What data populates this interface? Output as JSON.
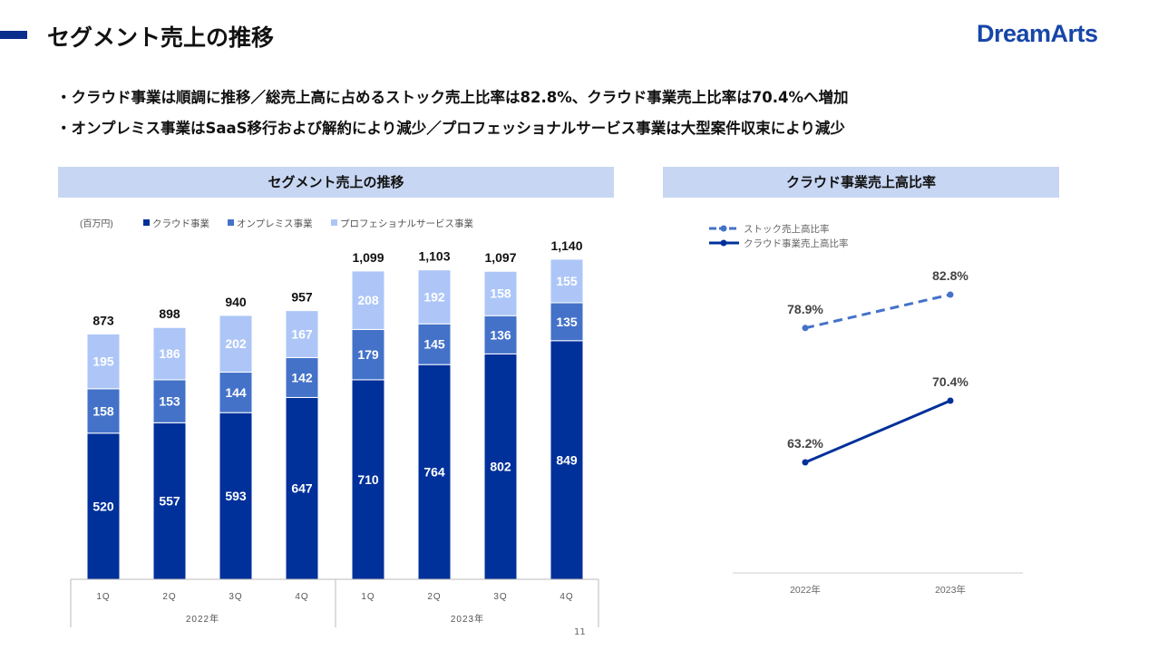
{
  "header": {
    "title": "セグメント売上の推移",
    "logo": "DreamArts"
  },
  "bullets": [
    "・クラウド事業は順調に推移／総売上高に占めるストック売上比率は82.8%、クラウド事業売上比率は70.4%へ増加",
    "・オンプレミス事業はSaaS移行および解約により減少／プロフェッショナルサービス事業は大型案件収束により減少"
  ],
  "page_number": "11",
  "colors": {
    "cloud": "#00309a",
    "onprem": "#4472c9",
    "pro": "#adc6f7",
    "stock_line": "#4472c9",
    "cloud_line": "#00309a"
  },
  "chart_data": [
    {
      "type": "bar",
      "stacked": true,
      "title": "セグメント売上の推移",
      "unit": "(百万円)",
      "categories": [
        "1Q",
        "2Q",
        "3Q",
        "4Q",
        "1Q",
        "2Q",
        "3Q",
        "4Q"
      ],
      "groups": [
        {
          "label": "2022年",
          "count": 4
        },
        {
          "label": "2023年",
          "count": 4
        }
      ],
      "series": [
        {
          "name": "クラウド事業",
          "values": [
            520,
            557,
            593,
            647,
            710,
            764,
            802,
            849
          ]
        },
        {
          "name": "オンプレミス事業",
          "values": [
            158,
            153,
            144,
            142,
            179,
            145,
            136,
            135
          ]
        },
        {
          "name": "プロフェショナルサービス事業",
          "values": [
            195,
            186,
            202,
            167,
            208,
            192,
            158,
            155
          ]
        }
      ],
      "totals": [
        "873",
        "898",
        "940",
        "957",
        "1,099",
        "1,103",
        "1,097",
        "1,140"
      ],
      "legend": "top-left"
    },
    {
      "type": "line",
      "title": "クラウド事業売上高比率",
      "categories": [
        "2022年",
        "2023年"
      ],
      "series": [
        {
          "name": "ストック売上高比率",
          "values": [
            78.9,
            82.8
          ],
          "labels": [
            "78.9%",
            "82.8%"
          ],
          "dashed": true
        },
        {
          "name": "クラウド事業売上高比率",
          "values": [
            63.2,
            70.4
          ],
          "labels": [
            "63.2%",
            "70.4%"
          ],
          "dashed": false
        }
      ],
      "legend": "top-left"
    }
  ]
}
